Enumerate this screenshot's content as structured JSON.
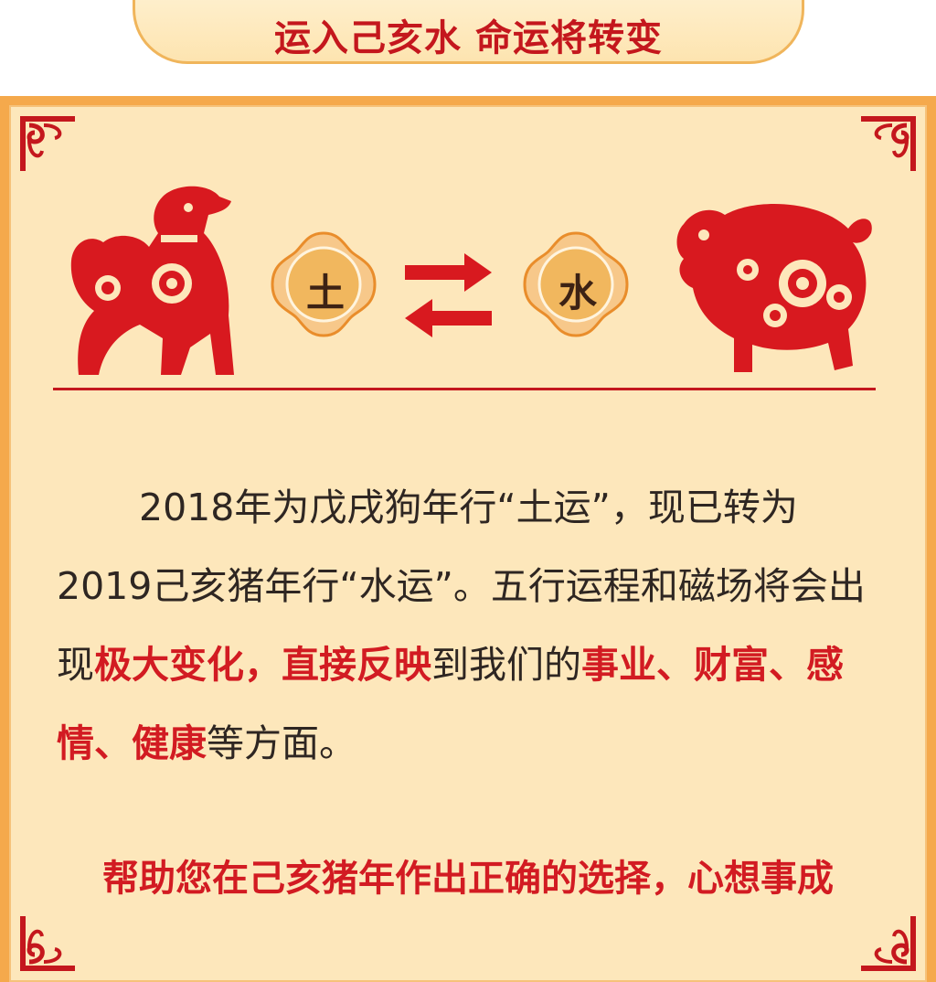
{
  "header": {
    "title": "运入己亥水 命运将转变"
  },
  "elements": {
    "left": "土",
    "right": "水"
  },
  "body": {
    "p1": "2018年为戊戌狗年行“土运”，现已转为2019己亥猪年行“水运”。五行运程和磁场将会出现",
    "p1_red": "极大变化，直接反映",
    "p2": "到我们的",
    "p2_red": "事业、财富、感情、健康",
    "p3": "等方面。"
  },
  "slogan": "帮助您在己亥猪年作出正确的选择，心想事成",
  "colors": {
    "accent": "#d21b22",
    "panel": "#fde7bb",
    "frame": "#f5a94c"
  },
  "icons": [
    "dog-papercut-icon",
    "pig-papercut-icon",
    "exchange-arrows-icon",
    "corner-cloud-ornament-icon"
  ]
}
